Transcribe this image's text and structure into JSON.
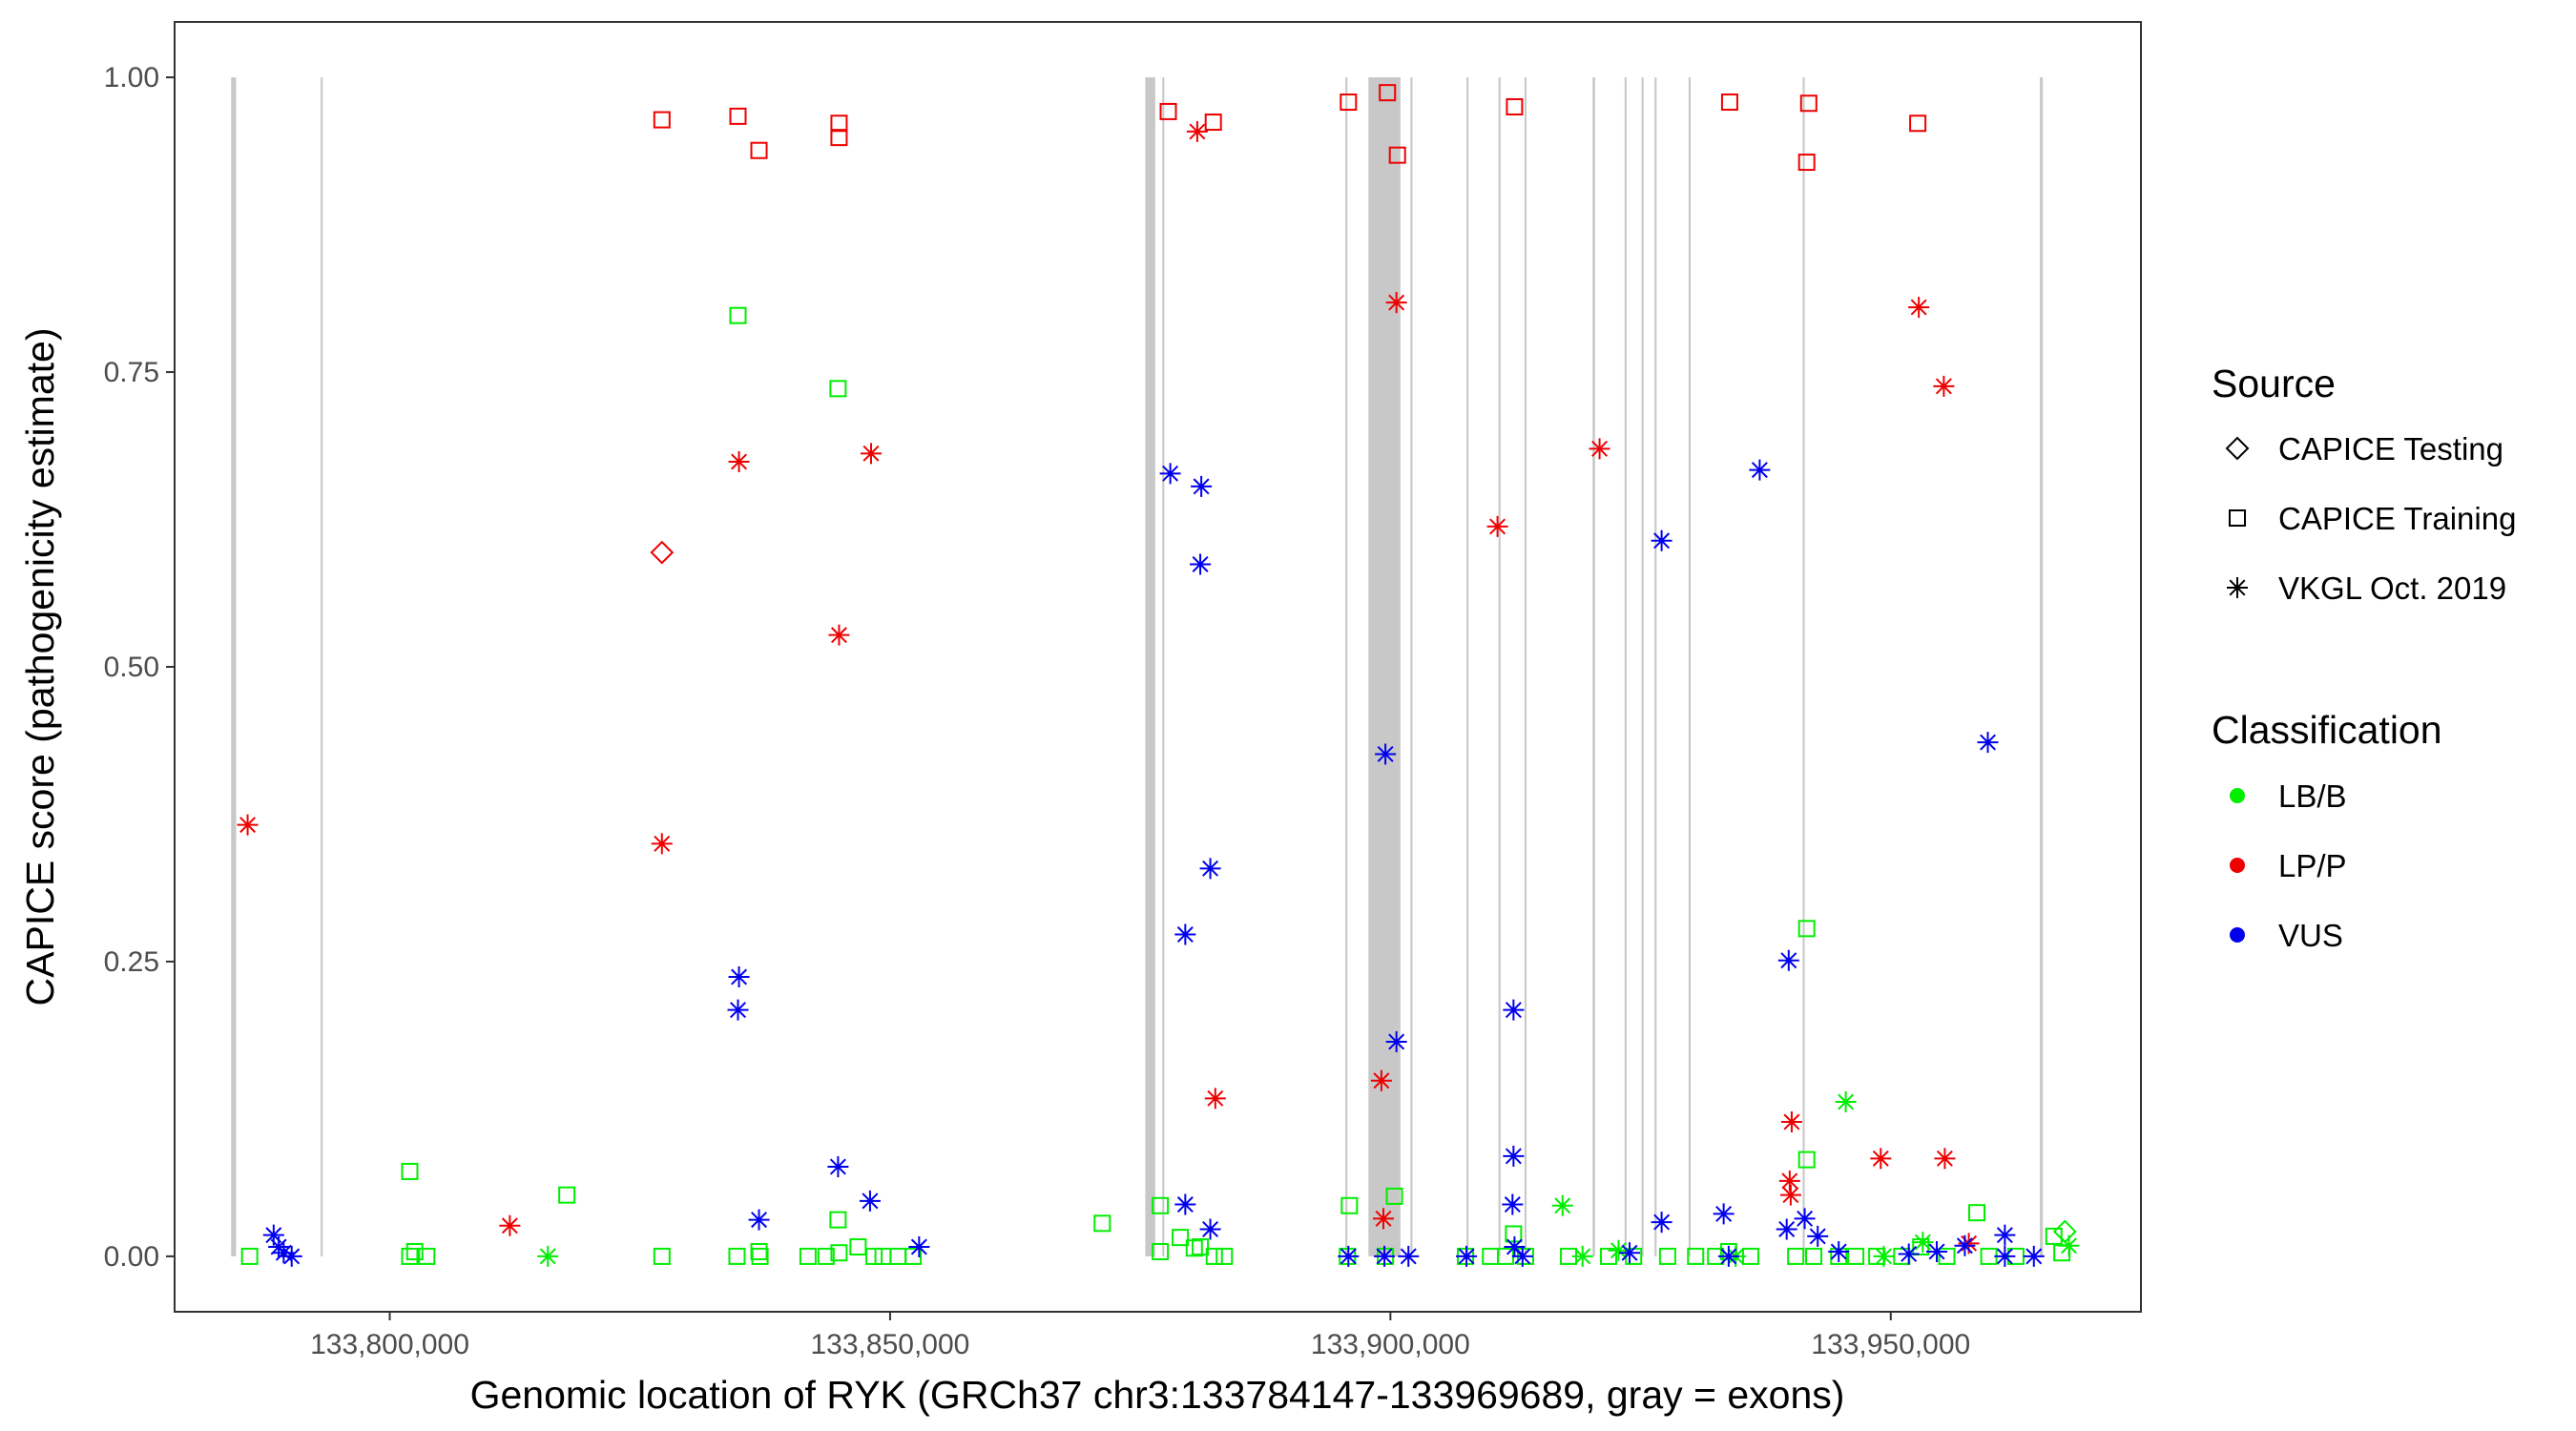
{
  "chart_data": {
    "type": "scatter",
    "xlabel": "Genomic location of RYK (GRCh37 chr3:133784147-133969689, gray = exons)",
    "ylabel": "CAPICE score (pathogenicity estimate)",
    "xlim": [
      133778500,
      133975000
    ],
    "ylim": [
      -0.047,
      1.047
    ],
    "x_ticks": [
      {
        "value": 133800000,
        "label": "133,800,000"
      },
      {
        "value": 133850000,
        "label": "133,850,000"
      },
      {
        "value": 133900000,
        "label": "133,900,000"
      },
      {
        "value": 133950000,
        "label": "133,950,000"
      }
    ],
    "y_ticks": [
      {
        "value": 0.0,
        "label": "0.00"
      },
      {
        "value": 0.25,
        "label": "0.25"
      },
      {
        "value": 0.5,
        "label": "0.50"
      },
      {
        "value": 0.75,
        "label": "0.75"
      },
      {
        "value": 1.0,
        "label": "1.00"
      }
    ],
    "grid": false,
    "exon_color": "#c8c8c8",
    "exons": [
      [
        133784147,
        133784650
      ],
      [
        133793100,
        133793300
      ],
      [
        133875500,
        133876500
      ],
      [
        133877200,
        133877400
      ],
      [
        133895500,
        133895700
      ],
      [
        133897800,
        133901000
      ],
      [
        133902000,
        133902200
      ],
      [
        133907600,
        133907800
      ],
      [
        133910800,
        133911000
      ],
      [
        133913400,
        133913600
      ],
      [
        133920200,
        133920450
      ],
      [
        133923400,
        133923600
      ],
      [
        133925100,
        133925300
      ],
      [
        133926400,
        133926600
      ],
      [
        133929800,
        133930000
      ],
      [
        133941200,
        133941400
      ],
      [
        133964900,
        133965200
      ]
    ],
    "legend": {
      "placement": "right",
      "source_title": "Source",
      "source_items": [
        {
          "shape": "diamond",
          "label": "CAPICE Testing"
        },
        {
          "shape": "square",
          "label": "CAPICE Training"
        },
        {
          "shape": "star",
          "label": "VKGL Oct. 2019"
        }
      ],
      "class_title": "Classification",
      "class_items": [
        {
          "label": "LB/B",
          "color": "#00ee00"
        },
        {
          "label": "LP/P",
          "color": "#ee0000"
        },
        {
          "label": "VUS",
          "color": "#0000ee"
        }
      ]
    },
    "series": [
      {
        "shape": "square",
        "classification": "LP/P",
        "points": [
          [
            133827200,
            0.964
          ],
          [
            133834800,
            0.967
          ],
          [
            133836900,
            0.938
          ],
          [
            133844900,
            0.961
          ],
          [
            133844900,
            0.949
          ],
          [
            133877800,
            0.971
          ],
          [
            133882300,
            0.962
          ],
          [
            133895800,
            0.979
          ],
          [
            133899700,
            0.987
          ],
          [
            133900700,
            0.934
          ],
          [
            133912400,
            0.975
          ],
          [
            133933900,
            0.979
          ],
          [
            133941800,
            0.978
          ],
          [
            133941600,
            0.928
          ],
          [
            133952700,
            0.961
          ]
        ]
      },
      {
        "shape": "star",
        "classification": "LP/P",
        "points": [
          [
            133785800,
            0.366
          ],
          [
            133827200,
            0.35
          ],
          [
            133834900,
            0.674
          ],
          [
            133848100,
            0.681
          ],
          [
            133844900,
            0.527
          ],
          [
            133880700,
            0.954
          ],
          [
            133882500,
            0.134
          ],
          [
            133900600,
            0.809
          ],
          [
            133899100,
            0.149
          ],
          [
            133899300,
            0.032
          ],
          [
            133910700,
            0.619
          ],
          [
            133920900,
            0.685
          ],
          [
            133952800,
            0.805
          ],
          [
            133955300,
            0.738
          ],
          [
            133940100,
            0.114
          ],
          [
            133939900,
            0.064
          ],
          [
            133940000,
            0.052
          ],
          [
            133949000,
            0.083
          ],
          [
            133955400,
            0.083
          ],
          [
            133957800,
            0.011
          ],
          [
            133812000,
            0.026
          ]
        ]
      },
      {
        "shape": "square",
        "classification": "LB/B",
        "points": [
          [
            133834800,
            0.798
          ],
          [
            133844800,
            0.736
          ],
          [
            133802000,
            0.072
          ],
          [
            133817700,
            0.052
          ],
          [
            133871200,
            0.028
          ],
          [
            133877000,
            0.043
          ],
          [
            133879000,
            0.016
          ],
          [
            133881000,
            0.008
          ],
          [
            133895900,
            0.043
          ],
          [
            133900400,
            0.051
          ],
          [
            133912300,
            0.019
          ],
          [
            133941600,
            0.278
          ],
          [
            133941600,
            0.082
          ],
          [
            133958600,
            0.037
          ],
          [
            133966300,
            0.017
          ],
          [
            133786000,
            0.0
          ],
          [
            133802000,
            0.0
          ],
          [
            133802500,
            0.004
          ],
          [
            133803700,
            0.0
          ],
          [
            133827200,
            0.0
          ],
          [
            133834700,
            0.0
          ],
          [
            133837000,
            0.0
          ],
          [
            133836900,
            0.004
          ],
          [
            133841800,
            0.0
          ],
          [
            133843600,
            0.0
          ],
          [
            133844800,
            0.031
          ],
          [
            133844900,
            0.003
          ],
          [
            133846800,
            0.008
          ],
          [
            133848400,
            0.0
          ],
          [
            133849300,
            0.0
          ],
          [
            133850800,
            0.0
          ],
          [
            133852300,
            0.0
          ],
          [
            133877000,
            0.004
          ],
          [
            133880400,
            0.007
          ],
          [
            133882400,
            0.0
          ],
          [
            133883400,
            0.0
          ],
          [
            133895700,
            0.0
          ],
          [
            133899500,
            0.0
          ],
          [
            133907500,
            0.0
          ],
          [
            133910000,
            0.0
          ],
          [
            133911500,
            0.0
          ],
          [
            133913500,
            0.0
          ],
          [
            133917800,
            0.0
          ],
          [
            133921800,
            0.0
          ],
          [
            133924300,
            0.0
          ],
          [
            133927700,
            0.0
          ],
          [
            133930500,
            0.0
          ],
          [
            133932500,
            0.0
          ],
          [
            133933800,
            0.004
          ],
          [
            133936000,
            0.0
          ],
          [
            133940500,
            0.0
          ],
          [
            133942300,
            0.0
          ],
          [
            133944800,
            0.0
          ],
          [
            133946500,
            0.0
          ],
          [
            133948600,
            0.0
          ],
          [
            133951100,
            0.0
          ],
          [
            133953000,
            0.008
          ],
          [
            133955600,
            0.0
          ],
          [
            133959800,
            0.0
          ],
          [
            133962500,
            0.0
          ],
          [
            133967100,
            0.003
          ]
        ]
      },
      {
        "shape": "star",
        "classification": "LB/B",
        "points": [
          [
            133815800,
            0.0
          ],
          [
            133917200,
            0.043
          ],
          [
            133945500,
            0.131
          ],
          [
            133919200,
            0.0
          ],
          [
            133922800,
            0.005
          ],
          [
            133934500,
            0.0
          ],
          [
            133949300,
            0.0
          ],
          [
            133953200,
            0.012
          ],
          [
            133967800,
            0.009
          ]
        ]
      },
      {
        "shape": "star",
        "classification": "VUS",
        "points": [
          [
            133878000,
            0.664
          ],
          [
            133881100,
            0.653
          ],
          [
            133881000,
            0.587
          ],
          [
            133882000,
            0.329
          ],
          [
            133879500,
            0.273
          ],
          [
            133834900,
            0.237
          ],
          [
            133834800,
            0.209
          ],
          [
            133836900,
            0.031
          ],
          [
            133844800,
            0.076
          ],
          [
            133848000,
            0.047
          ],
          [
            133879500,
            0.044
          ],
          [
            133882000,
            0.023
          ],
          [
            133899500,
            0.426
          ],
          [
            133900600,
            0.182
          ],
          [
            133912300,
            0.209
          ],
          [
            133912300,
            0.085
          ],
          [
            133912200,
            0.044
          ],
          [
            133927100,
            0.607
          ],
          [
            133936900,
            0.667
          ],
          [
            133959700,
            0.436
          ],
          [
            133939800,
            0.251
          ],
          [
            133933300,
            0.036
          ],
          [
            133927100,
            0.029
          ],
          [
            133941400,
            0.032
          ],
          [
            133939600,
            0.023
          ],
          [
            133942700,
            0.017
          ],
          [
            133788400,
            0.018
          ],
          [
            133788900,
            0.008
          ],
          [
            133789400,
            0.003
          ],
          [
            133790200,
            0.0
          ],
          [
            133852900,
            0.008
          ],
          [
            133895800,
            0.0
          ],
          [
            133899400,
            0.0
          ],
          [
            133901800,
            0.0
          ],
          [
            133907600,
            0.0
          ],
          [
            133912400,
            0.008
          ],
          [
            133913200,
            0.0
          ],
          [
            133923900,
            0.003
          ],
          [
            133933800,
            0.0
          ],
          [
            133944800,
            0.004
          ],
          [
            133951800,
            0.002
          ],
          [
            133954600,
            0.004
          ],
          [
            133957400,
            0.009
          ],
          [
            133961400,
            0.018
          ],
          [
            133961400,
            0.0
          ],
          [
            133964300,
            0.0
          ]
        ]
      },
      {
        "shape": "diamond",
        "classification": "LP/P",
        "points": [
          [
            133827200,
            0.597
          ]
        ]
      },
      {
        "shape": "diamond",
        "classification": "LB/B",
        "points": [
          [
            133967400,
            0.021
          ]
        ]
      }
    ]
  }
}
